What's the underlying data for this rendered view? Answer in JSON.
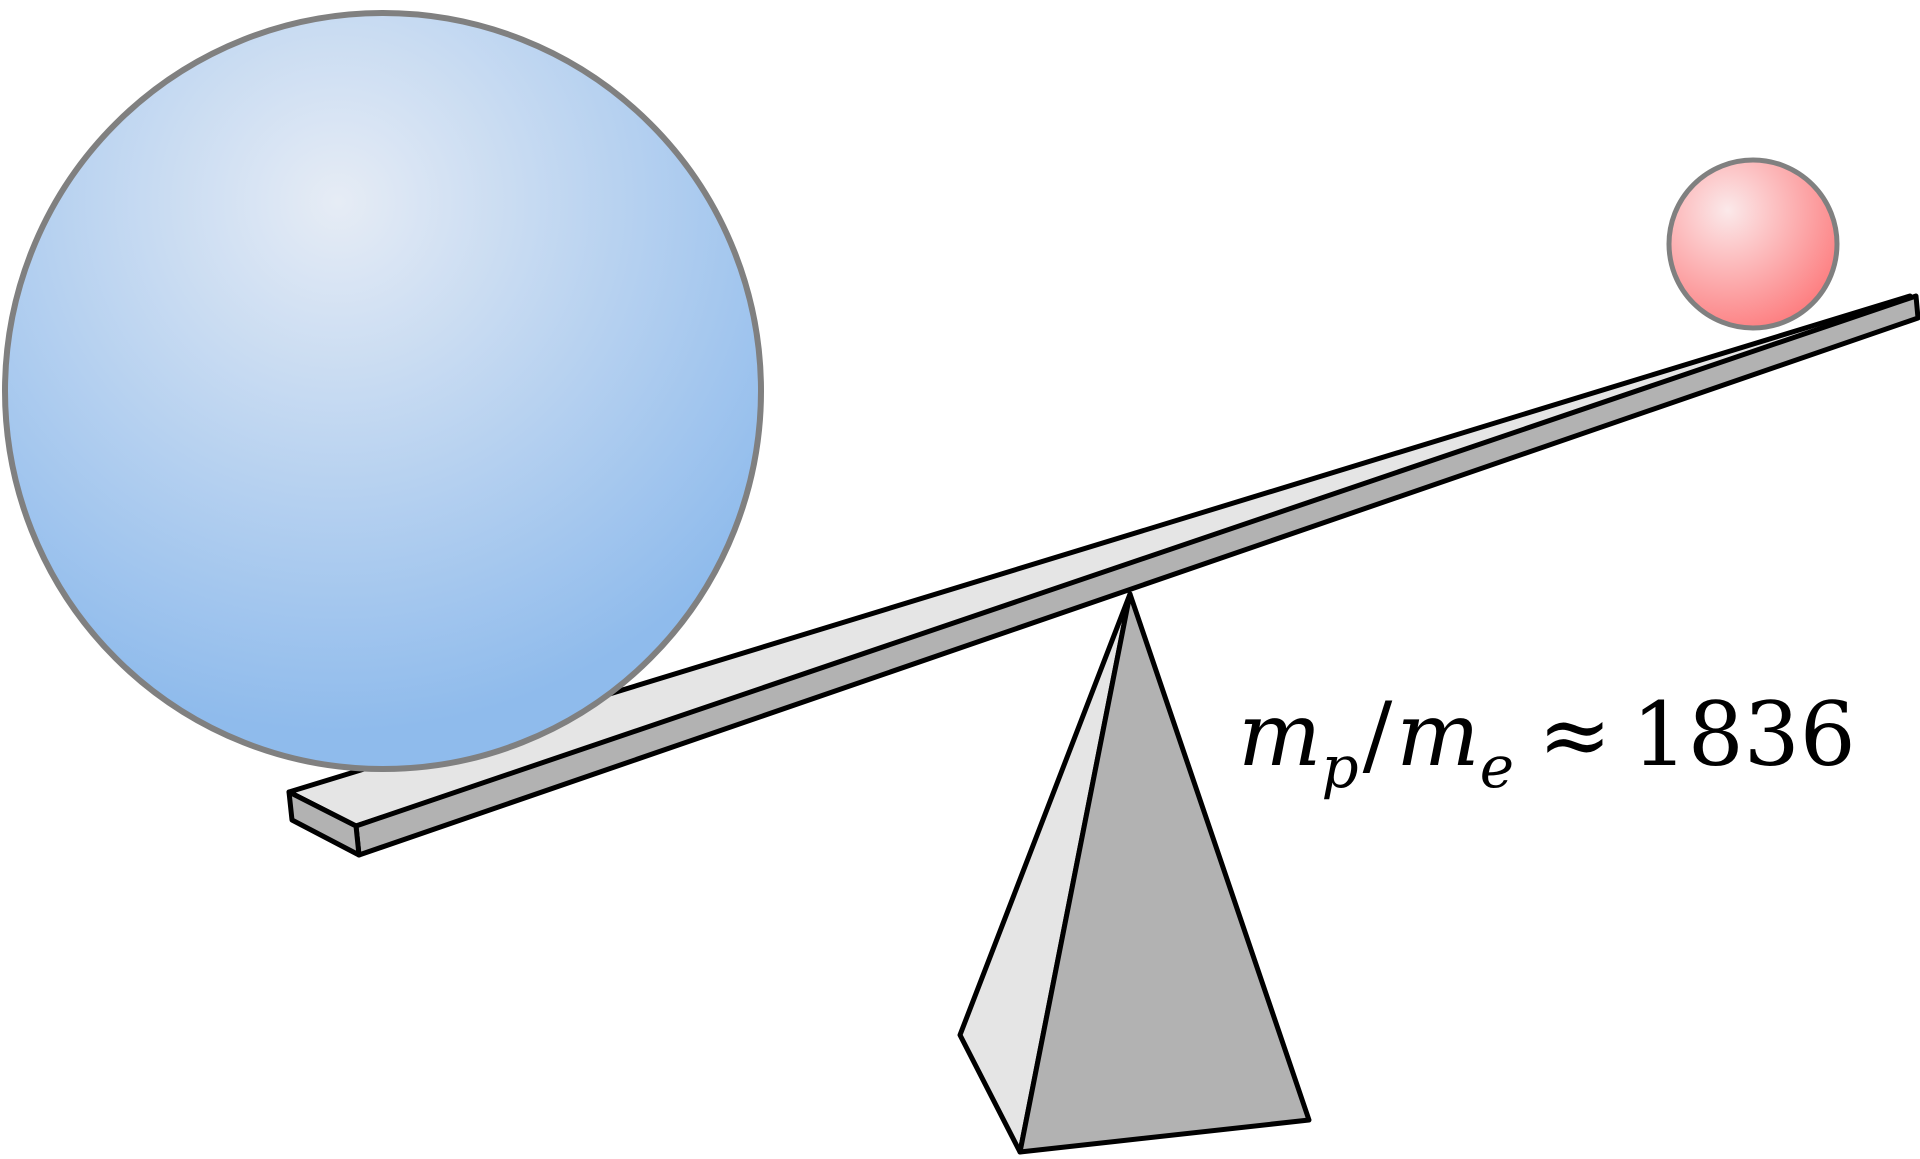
{
  "equation": {
    "numerator_symbol": "m",
    "numerator_subscript": "p",
    "slash": "/",
    "denominator_symbol": "m",
    "denominator_subscript": "e",
    "relation": "≈",
    "value": "1836"
  },
  "colors": {
    "proton_light": "#e6ecf5",
    "proton_dark": "#8fbbec",
    "electron_light": "#fbe9ea",
    "electron_dark": "#fd7d7f",
    "sphere_stroke": "#808080",
    "beam_top": "#e5e5e5",
    "beam_side": "#b2b2b2",
    "fulcrum_light": "#e5e5e5",
    "fulcrum_dark": "#b2b2b2",
    "outline": "#000000"
  }
}
